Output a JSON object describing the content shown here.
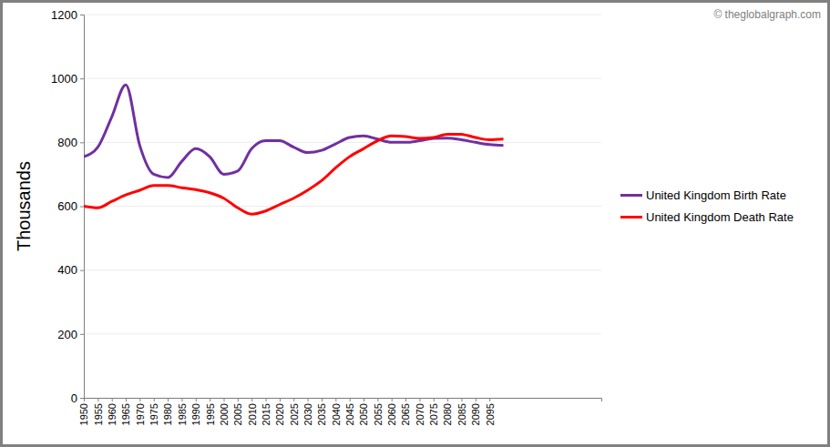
{
  "chart_data": {
    "type": "line",
    "ylabel": "Thousands",
    "annotation": "© theglobalgraph.com",
    "x": [
      1950,
      1955,
      1960,
      1965,
      1970,
      1975,
      1980,
      1985,
      1990,
      1995,
      2000,
      2005,
      2010,
      2015,
      2020,
      2025,
      2030,
      2035,
      2040,
      2045,
      2050,
      2055,
      2060,
      2065,
      2070,
      2075,
      2080,
      2085,
      2090,
      2095,
      2100
    ],
    "series": [
      {
        "name": "United Kingdom Birth Rate",
        "color": "#7030a0",
        "values": [
          755,
          785,
          880,
          980,
          790,
          700,
          690,
          740,
          780,
          755,
          700,
          710,
          780,
          805,
          805,
          785,
          768,
          775,
          795,
          815,
          820,
          810,
          800,
          800,
          805,
          812,
          813,
          808,
          800,
          793,
          790
        ]
      },
      {
        "name": "United Kingdom Death Rate",
        "color": "#ff0000",
        "values": [
          600,
          595,
          615,
          635,
          650,
          665,
          665,
          658,
          652,
          642,
          625,
          595,
          575,
          585,
          605,
          625,
          650,
          680,
          720,
          755,
          780,
          805,
          820,
          818,
          812,
          815,
          825,
          825,
          815,
          808,
          810
        ]
      }
    ],
    "xlim": [
      1950,
      2135
    ],
    "xticks": [
      1950,
      1955,
      1960,
      1965,
      1970,
      1975,
      1980,
      1985,
      1990,
      1995,
      2000,
      2005,
      2010,
      2015,
      2020,
      2025,
      2030,
      2035,
      2040,
      2045,
      2050,
      2055,
      2060,
      2065,
      2070,
      2075,
      2080,
      2085,
      2090,
      2095
    ],
    "ylim": [
      0,
      1200
    ],
    "yticks": [
      0,
      200,
      400,
      600,
      800,
      1000,
      1200
    ],
    "grid": true,
    "legend": "right"
  }
}
